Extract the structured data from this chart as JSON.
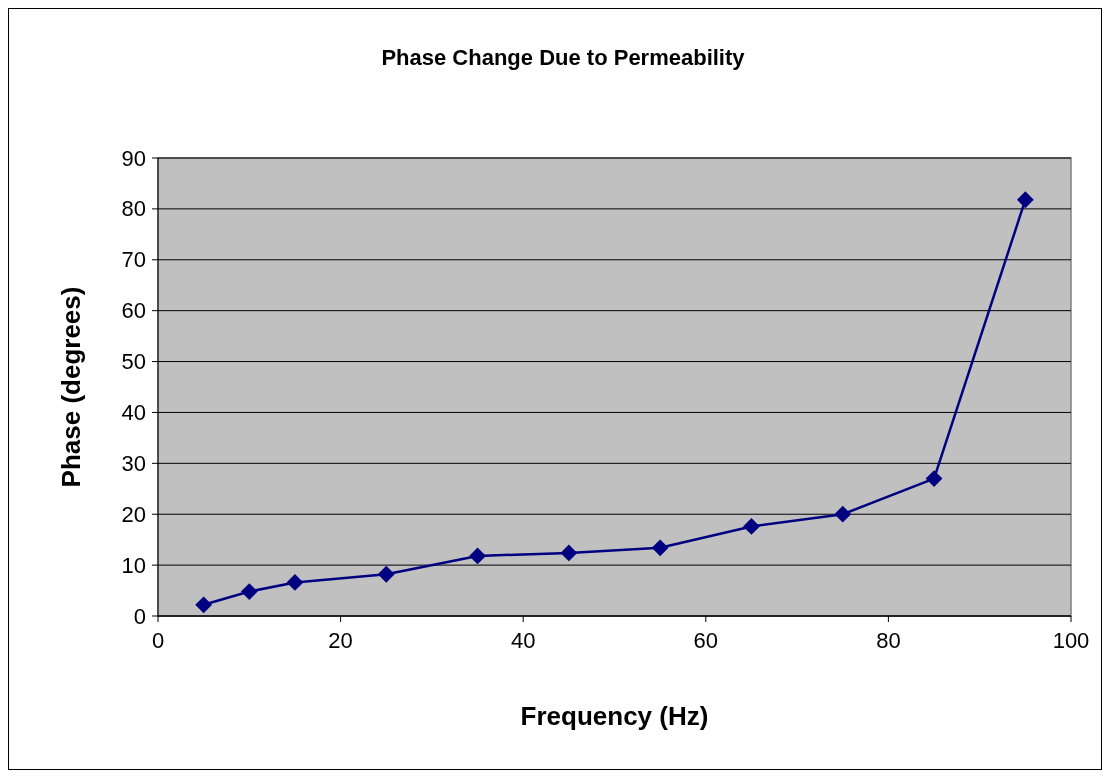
{
  "chart_data": {
    "type": "line",
    "title": "Phase Change Due to Permeability",
    "xlabel": "Frequency (Hz)",
    "ylabel": "Phase (degrees)",
    "x": [
      5,
      10,
      15,
      25,
      35,
      45,
      55,
      65,
      75,
      85,
      95
    ],
    "series": [
      {
        "color": "#000080",
        "values": [
          2.2,
          4.8,
          6.6,
          8.2,
          11.8,
          12.4,
          13.4,
          17.6,
          20,
          27,
          81.8
        ]
      }
    ],
    "xlim": [
      0,
      100
    ],
    "xticks": [
      0,
      20,
      40,
      60,
      80,
      100
    ],
    "ylim": [
      0,
      90
    ],
    "yticks": [
      0,
      10,
      20,
      30,
      40,
      50,
      60,
      70,
      80,
      90
    ],
    "grid": "y",
    "marker": "diamond",
    "line_style": "solid"
  }
}
